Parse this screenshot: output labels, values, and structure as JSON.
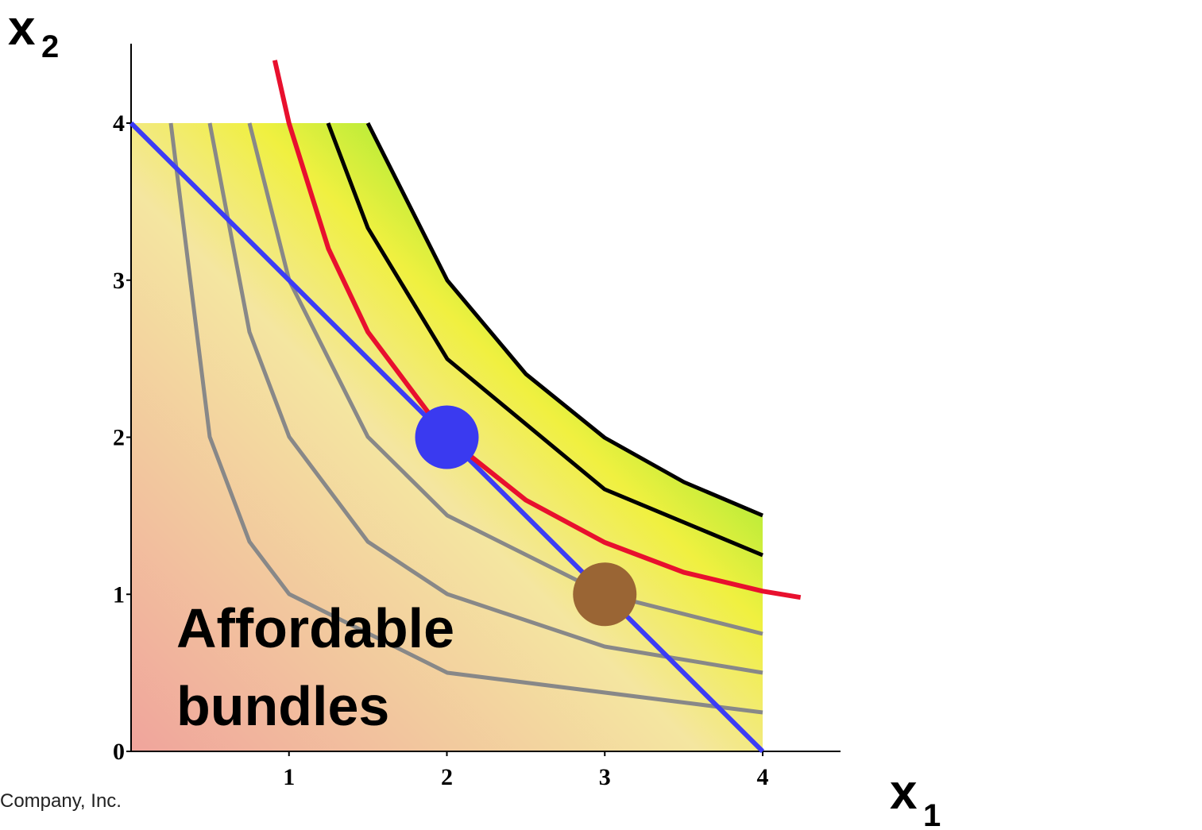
{
  "chart_data": {
    "type": "budget",
    "x_label": "x",
    "x_label_sub": "1",
    "y_label": "x",
    "y_label_sub": "2",
    "xlim": [
      0,
      4
    ],
    "ylim": [
      0,
      4
    ],
    "xticks": [
      1,
      2,
      3,
      4
    ],
    "yticks": [
      0,
      1,
      2,
      3,
      4
    ],
    "lines": [
      {
        "color": "#3c3cf5",
        "x": [
          0,
          4
        ],
        "y": [
          4,
          0
        ]
      },
      {
        "color": "#e8102e",
        "x": [
          0.91,
          1,
          1.25,
          1.5,
          2,
          2.5,
          3,
          3.5,
          4,
          4.24
        ],
        "y": [
          4.4,
          4,
          3.2,
          2.67,
          2,
          1.6,
          1.33,
          1.14,
          1.02,
          0.98
        ]
      }
    ],
    "points": [
      {
        "color": "#3a3af0",
        "x": 2,
        "y": 2
      },
      {
        "color": "#9a6534",
        "x": 3,
        "y": 1
      }
    ],
    "annotation": [
      "Affordable",
      "bundles"
    ],
    "footer": "Company, Inc."
  }
}
